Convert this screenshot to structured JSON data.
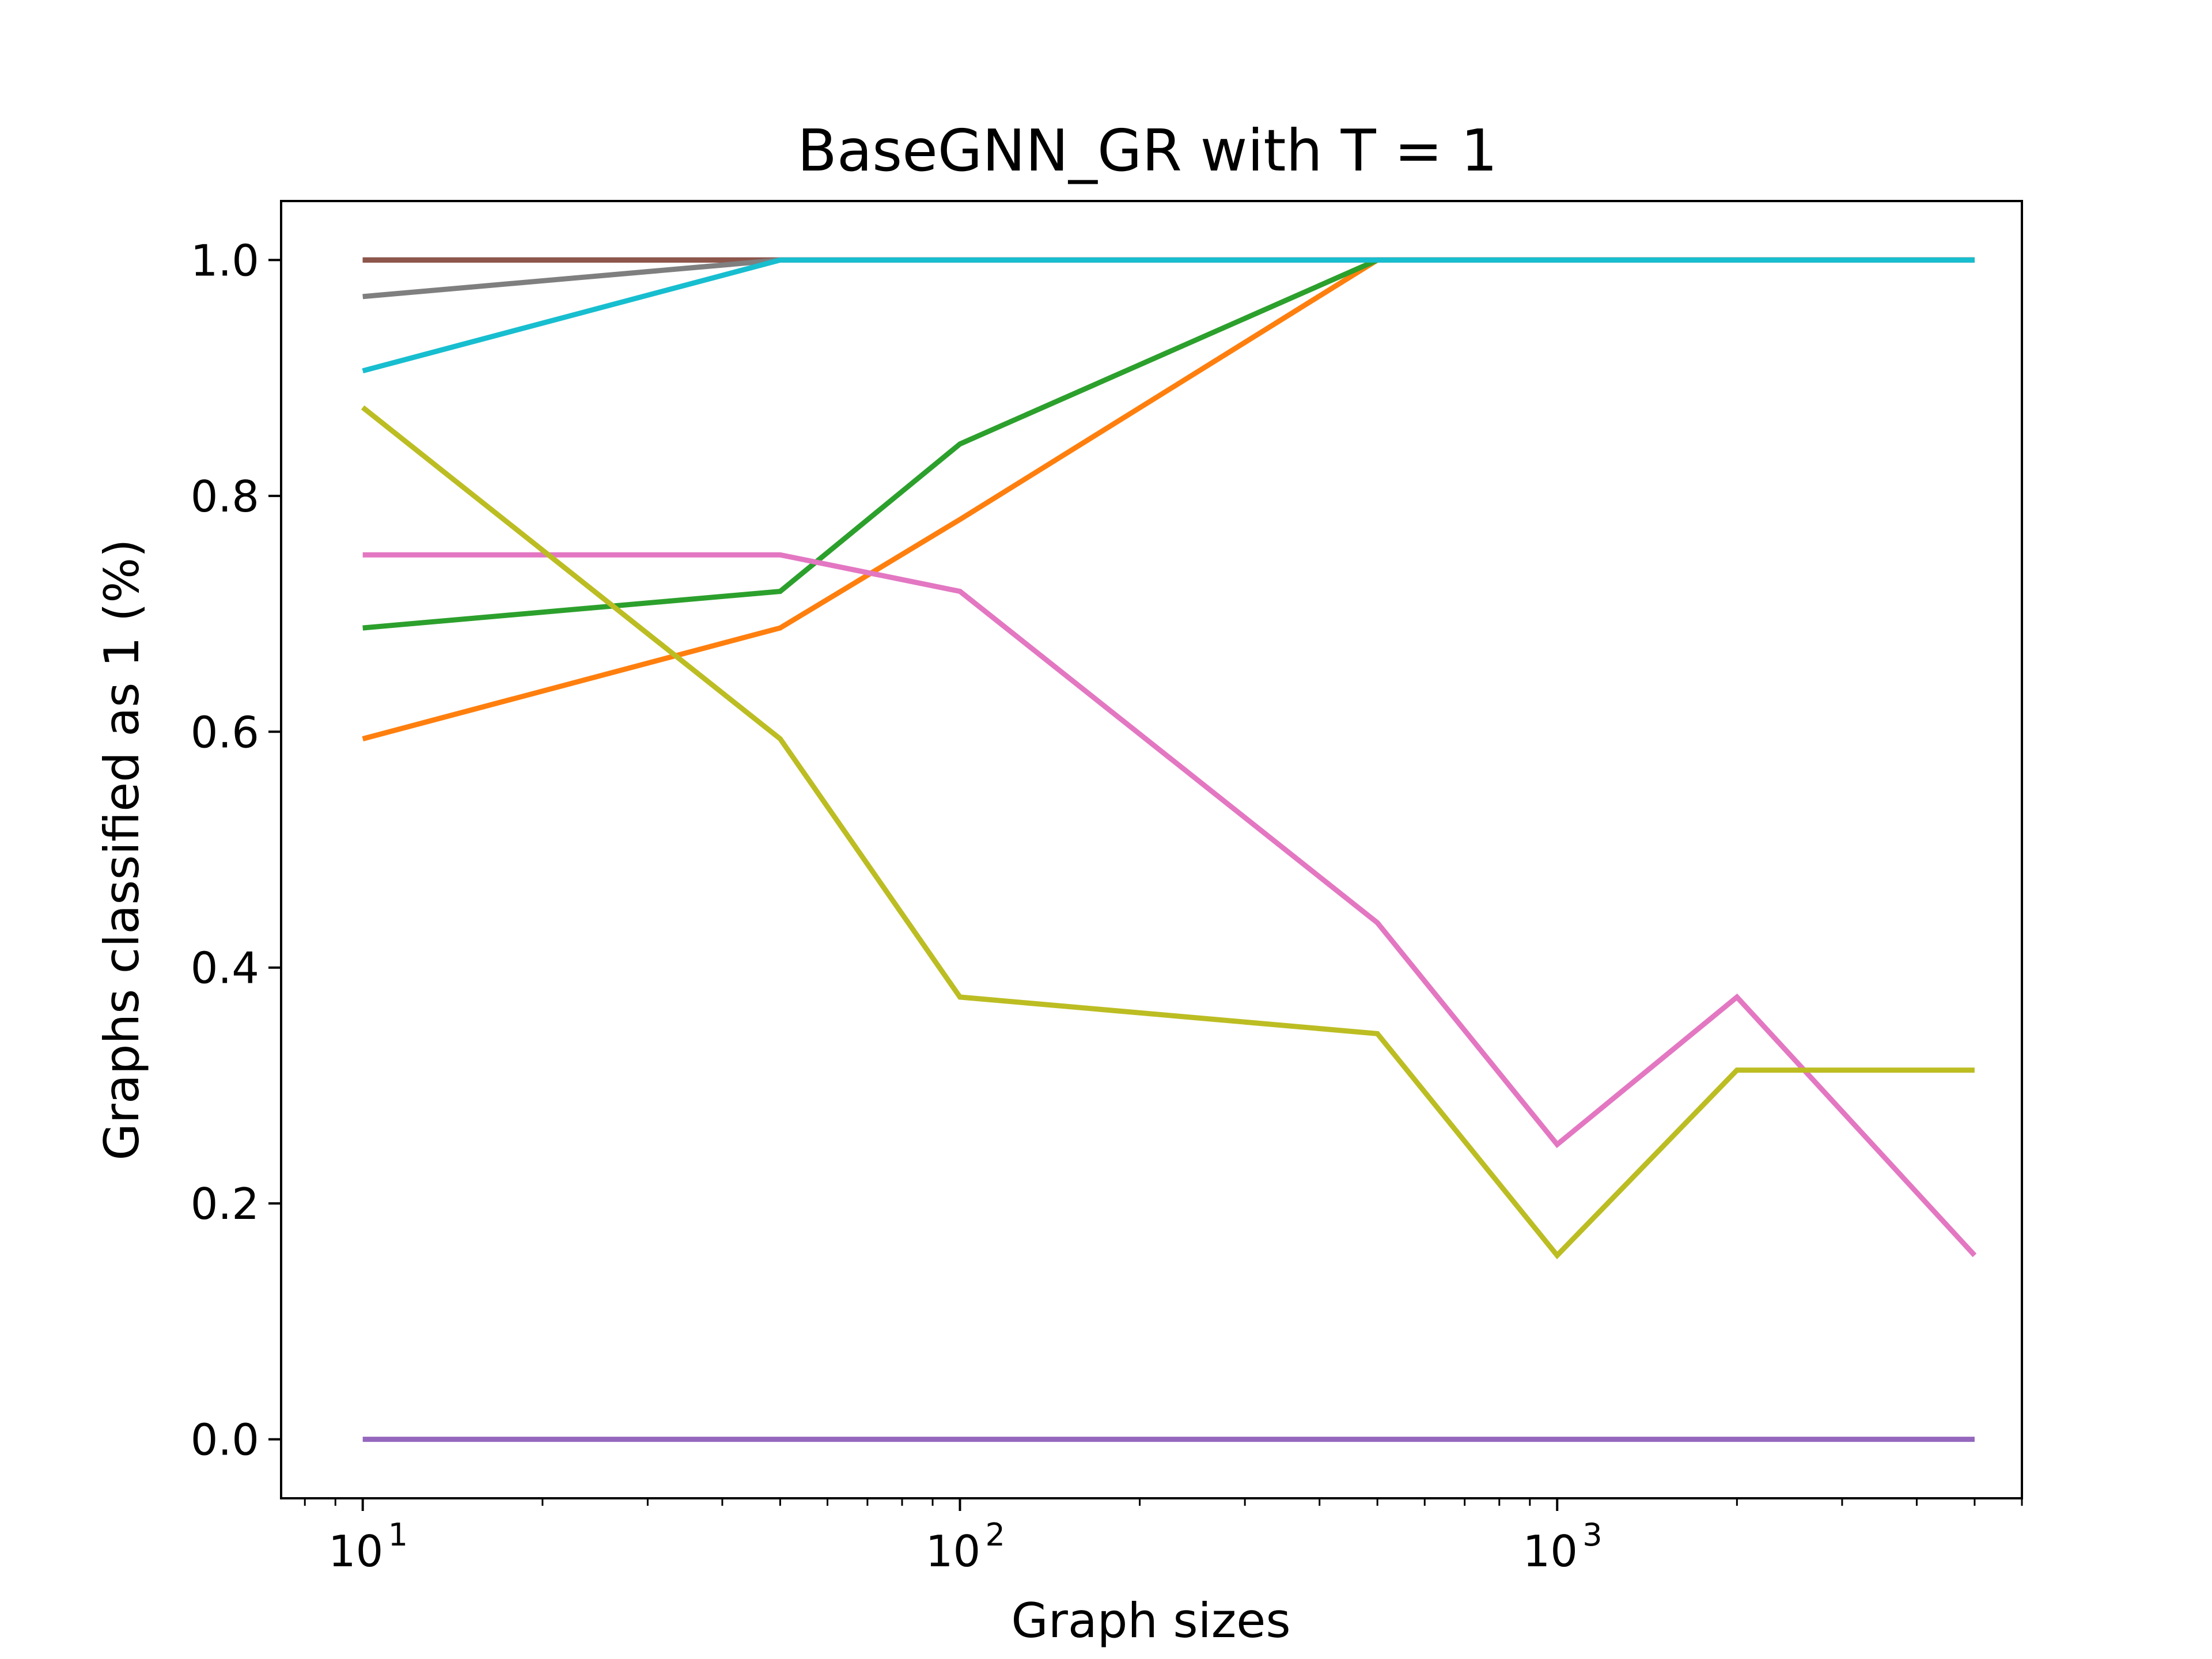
{
  "chart_data": {
    "type": "line",
    "title": "BaseGNN_GR with T = 1",
    "xlabel": "Graph sizes",
    "ylabel": "Graphs classified as 1 (%)",
    "xscale": "log",
    "xlim": [
      7.3,
      6000
    ],
    "ylim": [
      -0.05,
      1.05
    ],
    "x": [
      10,
      50,
      100,
      500,
      1000,
      2000,
      5000
    ],
    "yticks": [
      0.0,
      0.2,
      0.4,
      0.6,
      0.8,
      1.0
    ],
    "ytick_labels": [
      "0.0",
      "0.2",
      "0.4",
      "0.6",
      "0.8",
      "1.0"
    ],
    "xtick_labels": [
      {
        "value": 10,
        "base": "10",
        "exp": "1"
      },
      {
        "value": 100,
        "base": "10",
        "exp": "2"
      },
      {
        "value": 1000,
        "base": "10",
        "exp": "3"
      }
    ],
    "grid": false,
    "legend": "none",
    "series": [
      {
        "name": "series-blue",
        "color": "#1f77b4",
        "values": [
          1.0,
          1.0,
          1.0,
          1.0,
          1.0,
          1.0,
          1.0
        ]
      },
      {
        "name": "series-orange",
        "color": "#ff7f0e",
        "values": [
          0.594,
          0.688,
          0.78,
          1.0,
          1.0,
          1.0,
          1.0
        ]
      },
      {
        "name": "series-green",
        "color": "#2ca02c",
        "values": [
          0.688,
          0.719,
          0.844,
          1.0,
          1.0,
          1.0,
          1.0
        ]
      },
      {
        "name": "series-red",
        "color": "#d62728",
        "values": [
          1.0,
          1.0,
          1.0,
          1.0,
          1.0,
          1.0,
          1.0
        ]
      },
      {
        "name": "series-purple",
        "color": "#9467bd",
        "values": [
          0.0,
          0.0,
          0.0,
          0.0,
          0.0,
          0.0,
          0.0
        ]
      },
      {
        "name": "series-brown",
        "color": "#8c564b",
        "values": [
          1.0,
          1.0,
          1.0,
          1.0,
          1.0,
          1.0,
          1.0
        ]
      },
      {
        "name": "series-pink",
        "color": "#e377c2",
        "values": [
          0.75,
          0.75,
          0.719,
          0.438,
          0.25,
          0.375,
          0.156
        ]
      },
      {
        "name": "series-gray",
        "color": "#7f7f7f",
        "values": [
          0.969,
          1.0,
          1.0,
          1.0,
          1.0,
          1.0,
          1.0
        ]
      },
      {
        "name": "series-olive",
        "color": "#bcbd22",
        "values": [
          0.875,
          0.594,
          0.375,
          0.344,
          0.156,
          0.313,
          0.313
        ]
      },
      {
        "name": "series-cyan",
        "color": "#17becf",
        "values": [
          0.906,
          1.0,
          1.0,
          1.0,
          1.0,
          1.0,
          1.0
        ]
      }
    ]
  }
}
